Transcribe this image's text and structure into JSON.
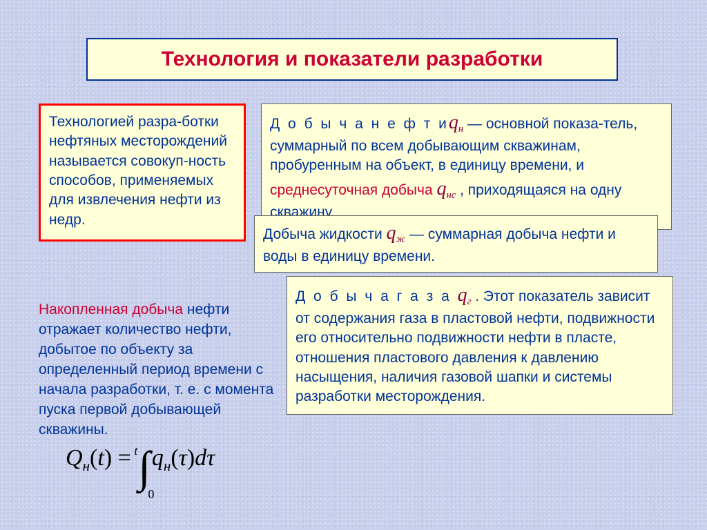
{
  "title": "Технология и показатели разработки",
  "definition": {
    "text": "Технологией разра-ботки нефтяных месторождений называется совокуп-ность способов, применяемых для извлечения нефти из недр."
  },
  "oil": {
    "label_spaced": "Д о б ы ч а  н е ф т и",
    "sym": "q",
    "sym_sub": "н",
    "t1": " — основной показа-тель, суммарный по всем добывающим скважинам, пробуренным на объект, в единицу времени, и ",
    "red": "среднесуточная добыча  ",
    "sym2": "q",
    "sym2_sub": "нс",
    "t2": "  , приходящаяся на одну скважину."
  },
  "liquid": {
    "t1": "Добыча жидкости  ",
    "sym": "q",
    "sym_sub": "ж",
    "t2": "  — суммарная добыча нефти и воды в единицу времени."
  },
  "accumulated": {
    "red": "Накопленная добыча",
    "t": " нефти отражает количество нефти, добытое по объекту за определенный период времени с начала разработки, т. е. с момента пуска первой добывающей  скважины."
  },
  "gas": {
    "label_spaced": "Д о б ы ч а  г а з а ",
    "sym": "q",
    "sym_sub": "г",
    "t": " . Этот показатель зависит от содержания газа в пластовой нефти, подвижности его относительно подвижности нефти в пласте, отношения пластового давления к давлению насыщения, наличия газовой шапки и системы разработки месторождения."
  },
  "formula": {
    "Q": "Q",
    "Q_sub": "н",
    "arg_open": "(",
    "t": "t",
    "arg_close": ")",
    "eq": " = ",
    "upper": "t",
    "lower": "0",
    "q": "q",
    "q_sub": "н",
    "tau1": "τ",
    "d": "d",
    "tau2": "τ"
  },
  "style": {
    "bg_color": "#c8d0ec",
    "box_bg": "#ffffd8",
    "title_color": "#cc0033",
    "title_border": "#003399",
    "def_border": "#ff0000",
    "text_color": "#003399",
    "maroon": "#8b0040",
    "title_fontsize": 30,
    "body_fontsize": 21,
    "formula_fontsize": 34
  }
}
